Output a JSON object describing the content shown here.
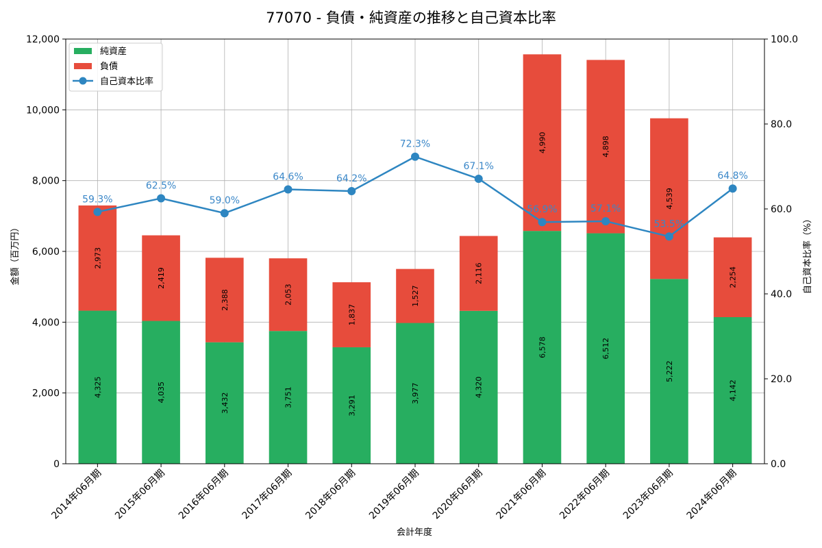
{
  "chart_data": {
    "type": "bar",
    "title": "77070 - 負債・純資産の推移と自己資本比率",
    "xlabel": "会計年度",
    "ylabel": "金額（百万円）",
    "y2label": "自己資本比率（%）",
    "categories": [
      "2014年06月期",
      "2015年06月期",
      "2016年06月期",
      "2017年06月期",
      "2018年06月期",
      "2019年06月期",
      "2020年06月期",
      "2021年06月期",
      "2022年06月期",
      "2023年06月期",
      "2024年06月期"
    ],
    "series": [
      {
        "name": "純資産",
        "kind": "stacked-bar",
        "color": "#27ae60",
        "values": [
          4325,
          4035,
          3432,
          3751,
          3291,
          3977,
          4320,
          6578,
          6512,
          5222,
          4142
        ]
      },
      {
        "name": "負債",
        "kind": "stacked-bar",
        "color": "#e74c3c",
        "values": [
          2973,
          2419,
          2388,
          2053,
          1837,
          1527,
          2116,
          4990,
          4898,
          4539,
          2254
        ]
      },
      {
        "name": "自己資本比率",
        "kind": "line",
        "axis": "right",
        "color": "#2e86c1",
        "values": [
          59.3,
          62.5,
          59.0,
          64.6,
          64.2,
          72.3,
          67.1,
          56.9,
          57.1,
          53.5,
          64.8
        ]
      }
    ],
    "bar_value_labels": {
      "純資産": [
        "4,325",
        "4,035",
        "3,432",
        "3,751",
        "3,291",
        "3,977",
        "4,320",
        "6,578",
        "6,512",
        "5,222",
        "4,142"
      ],
      "負債": [
        "2,973",
        "2,419",
        "2,388",
        "2,053",
        "1,837",
        "1,527",
        "2,116",
        "4,990",
        "4,898",
        "4,539",
        "2,254"
      ]
    },
    "ratio_labels": [
      "59.3%",
      "62.5%",
      "59.0%",
      "64.6%",
      "64.2%",
      "72.3%",
      "67.1%",
      "56.9%",
      "57.1%",
      "53.5%",
      "64.8%"
    ],
    "ylim": [
      0,
      12000
    ],
    "yticks": [
      0,
      2000,
      4000,
      6000,
      8000,
      10000,
      12000
    ],
    "ytick_labels": [
      "0",
      "2,000",
      "4,000",
      "6,000",
      "8,000",
      "10,000",
      "12,000"
    ],
    "y2lim": [
      0,
      100
    ],
    "y2ticks": [
      0,
      20,
      40,
      60,
      80,
      100
    ],
    "y2tick_labels": [
      "0.0",
      "20.0",
      "40.0",
      "60.0",
      "80.0",
      "100.0"
    ],
    "grid": true,
    "legend": {
      "position": "top-left",
      "entries": [
        "純資産",
        "負債",
        "自己資本比率"
      ]
    }
  }
}
